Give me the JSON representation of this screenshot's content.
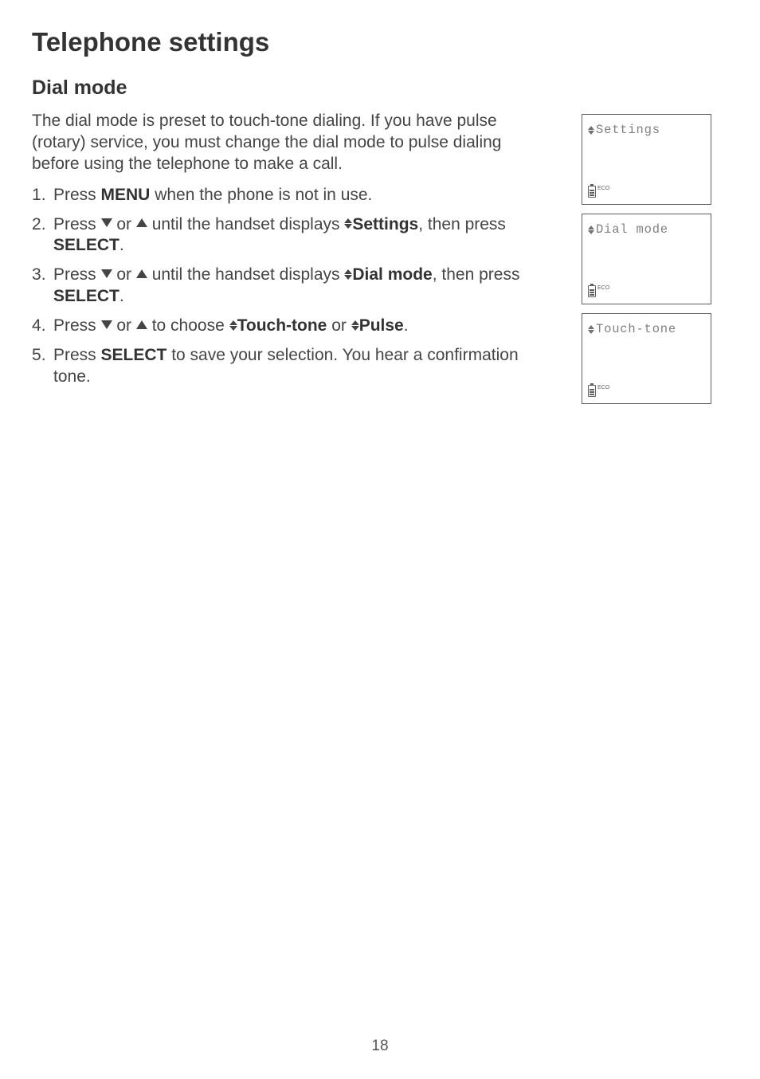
{
  "title": "Telephone settings",
  "section": "Dial mode",
  "intro": "The dial mode is preset to touch-tone dialing. If you have pulse (rotary) service, you must change the dial mode to pulse dialing before using the telephone to make a call.",
  "steps": {
    "s1_a": "Press ",
    "s1_menu": "MENU",
    "s1_b": " when the phone is not in use.",
    "s2_a": "Press ",
    "s2_or": " or ",
    "s2_b": " until the handset displays ",
    "s2_settings": "Settings",
    "s2_c": ", then press ",
    "s2_select": "SELECT",
    "s2_d": ".",
    "s3_a": "Press ",
    "s3_or": " or ",
    "s3_b": " until the handset displays ",
    "s3_dial": "Dial mode",
    "s3_c": ", then press ",
    "s3_select": "SELECT",
    "s3_d": ".",
    "s4_a": "Press ",
    "s4_or": " or ",
    "s4_b": " to choose ",
    "s4_tt": "Touch-tone",
    "s4_or2": " or ",
    "s4_pulse": "Pulse",
    "s4_c": ".",
    "s5_a": "Press ",
    "s5_select": "SELECT",
    "s5_b": " to save your selection. You hear a confirmation tone."
  },
  "screens": {
    "screen1": "Settings",
    "screen2": "Dial mode",
    "screen3": "Touch-tone",
    "eco": "ECO"
  },
  "pageNumber": "18",
  "colors": {
    "text": "#454545",
    "bold": "#333333",
    "lcdText": "#808080",
    "lcdBorder": "#606060",
    "background": "#ffffff"
  },
  "fonts": {
    "body": "Arial",
    "lcd": "Courier New",
    "titleSize": 33,
    "headingSize": 25,
    "bodySize": 21,
    "lcdSize": 15.5
  }
}
